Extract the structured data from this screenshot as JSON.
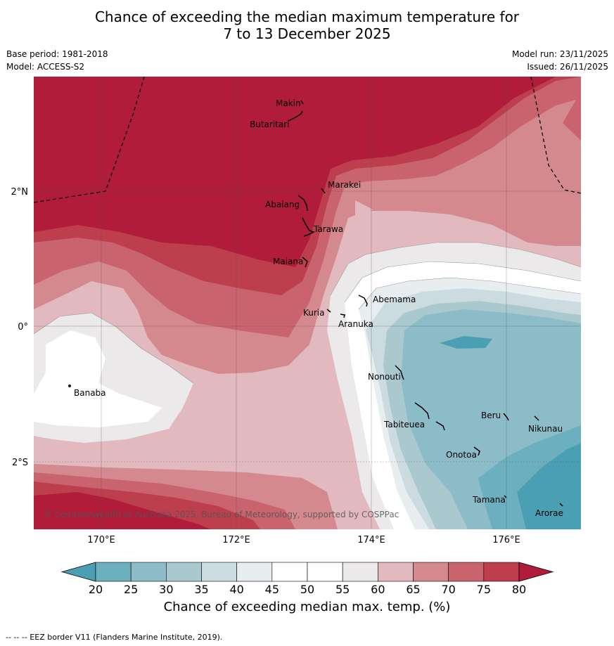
{
  "title": {
    "line1": "Chance of exceeding the median maximum temperature for",
    "line2": "7 to 13 December 2025"
  },
  "meta": {
    "base_period": "Base period: 1981-2018",
    "model": "Model: ACCESS-S2",
    "model_run": "Model run: 23/11/2025",
    "issued": "Issued: 26/11/2025"
  },
  "axes": {
    "lat_labels": [
      "2°N",
      "0°",
      "2°S"
    ],
    "lon_labels": [
      "170°E",
      "172°E",
      "174°E",
      "176°E"
    ]
  },
  "places": [
    {
      "name": "Makin"
    },
    {
      "name": "Butaritari"
    },
    {
      "name": "Marakei"
    },
    {
      "name": "Abaiang"
    },
    {
      "name": "Tarawa"
    },
    {
      "name": "Maiana"
    },
    {
      "name": "Abemama"
    },
    {
      "name": "Kuria"
    },
    {
      "name": "Aranuka"
    },
    {
      "name": "Banaba"
    },
    {
      "name": "Nonouti"
    },
    {
      "name": "Tabiteuea"
    },
    {
      "name": "Beru"
    },
    {
      "name": "Nikunau"
    },
    {
      "name": "Onotoa"
    },
    {
      "name": "Tamana"
    },
    {
      "name": "Arorae"
    }
  ],
  "copyright": "© Commonwealth of Australia 2025, Bureau of Meteorology, supported by COSPPac",
  "colorbar": {
    "ticks": [
      "20",
      "25",
      "30",
      "35",
      "40",
      "45",
      "50",
      "55",
      "60",
      "65",
      "70",
      "75",
      "80"
    ],
    "label": "Chance of exceeding median max. temp. (%)",
    "colors": [
      "#4a9fb2",
      "#6cb0bf",
      "#8cbcc7",
      "#aac9cf",
      "#cbdbdf",
      "#e8eef0",
      "#ffffff",
      "#ffffff",
      "#ece9ea",
      "#e2b9bf",
      "#d4898f",
      "#c9636d",
      "#bd3f4d",
      "#b01c3a"
    ]
  },
  "footnote": "--  --  -- EEZ border V11 (Flanders Marine Institute, 2019)."
}
